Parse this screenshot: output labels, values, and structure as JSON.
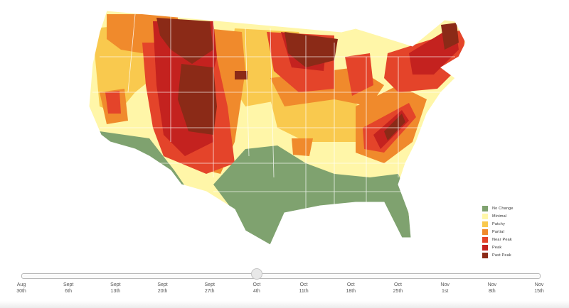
{
  "legend": {
    "items": [
      {
        "label": "No Change",
        "color": "#7fa26f"
      },
      {
        "label": "Minimal",
        "color": "#fff6a8"
      },
      {
        "label": "Patchy",
        "color": "#f9c94e"
      },
      {
        "label": "Partial",
        "color": "#f08a2c"
      },
      {
        "label": "Near Peak",
        "color": "#e4442a"
      },
      {
        "label": "Peak",
        "color": "#c4221f"
      },
      {
        "label": "Past Peak",
        "color": "#8b2a17"
      }
    ]
  },
  "timeline": {
    "selected_index": 5,
    "ticks": [
      {
        "month": "Aug",
        "day": "30th"
      },
      {
        "month": "Sept",
        "day": "6th"
      },
      {
        "month": "Sept",
        "day": "13th"
      },
      {
        "month": "Sept",
        "day": "20th"
      },
      {
        "month": "Sept",
        "day": "27th"
      },
      {
        "month": "Oct",
        "day": "4th"
      },
      {
        "month": "Oct",
        "day": "11th"
      },
      {
        "month": "Oct",
        "day": "18th"
      },
      {
        "month": "Oct",
        "day": "25th"
      },
      {
        "month": "Nov",
        "day": "1st"
      },
      {
        "month": "Nov",
        "day": "8th"
      },
      {
        "month": "Nov",
        "day": "15th"
      }
    ]
  }
}
